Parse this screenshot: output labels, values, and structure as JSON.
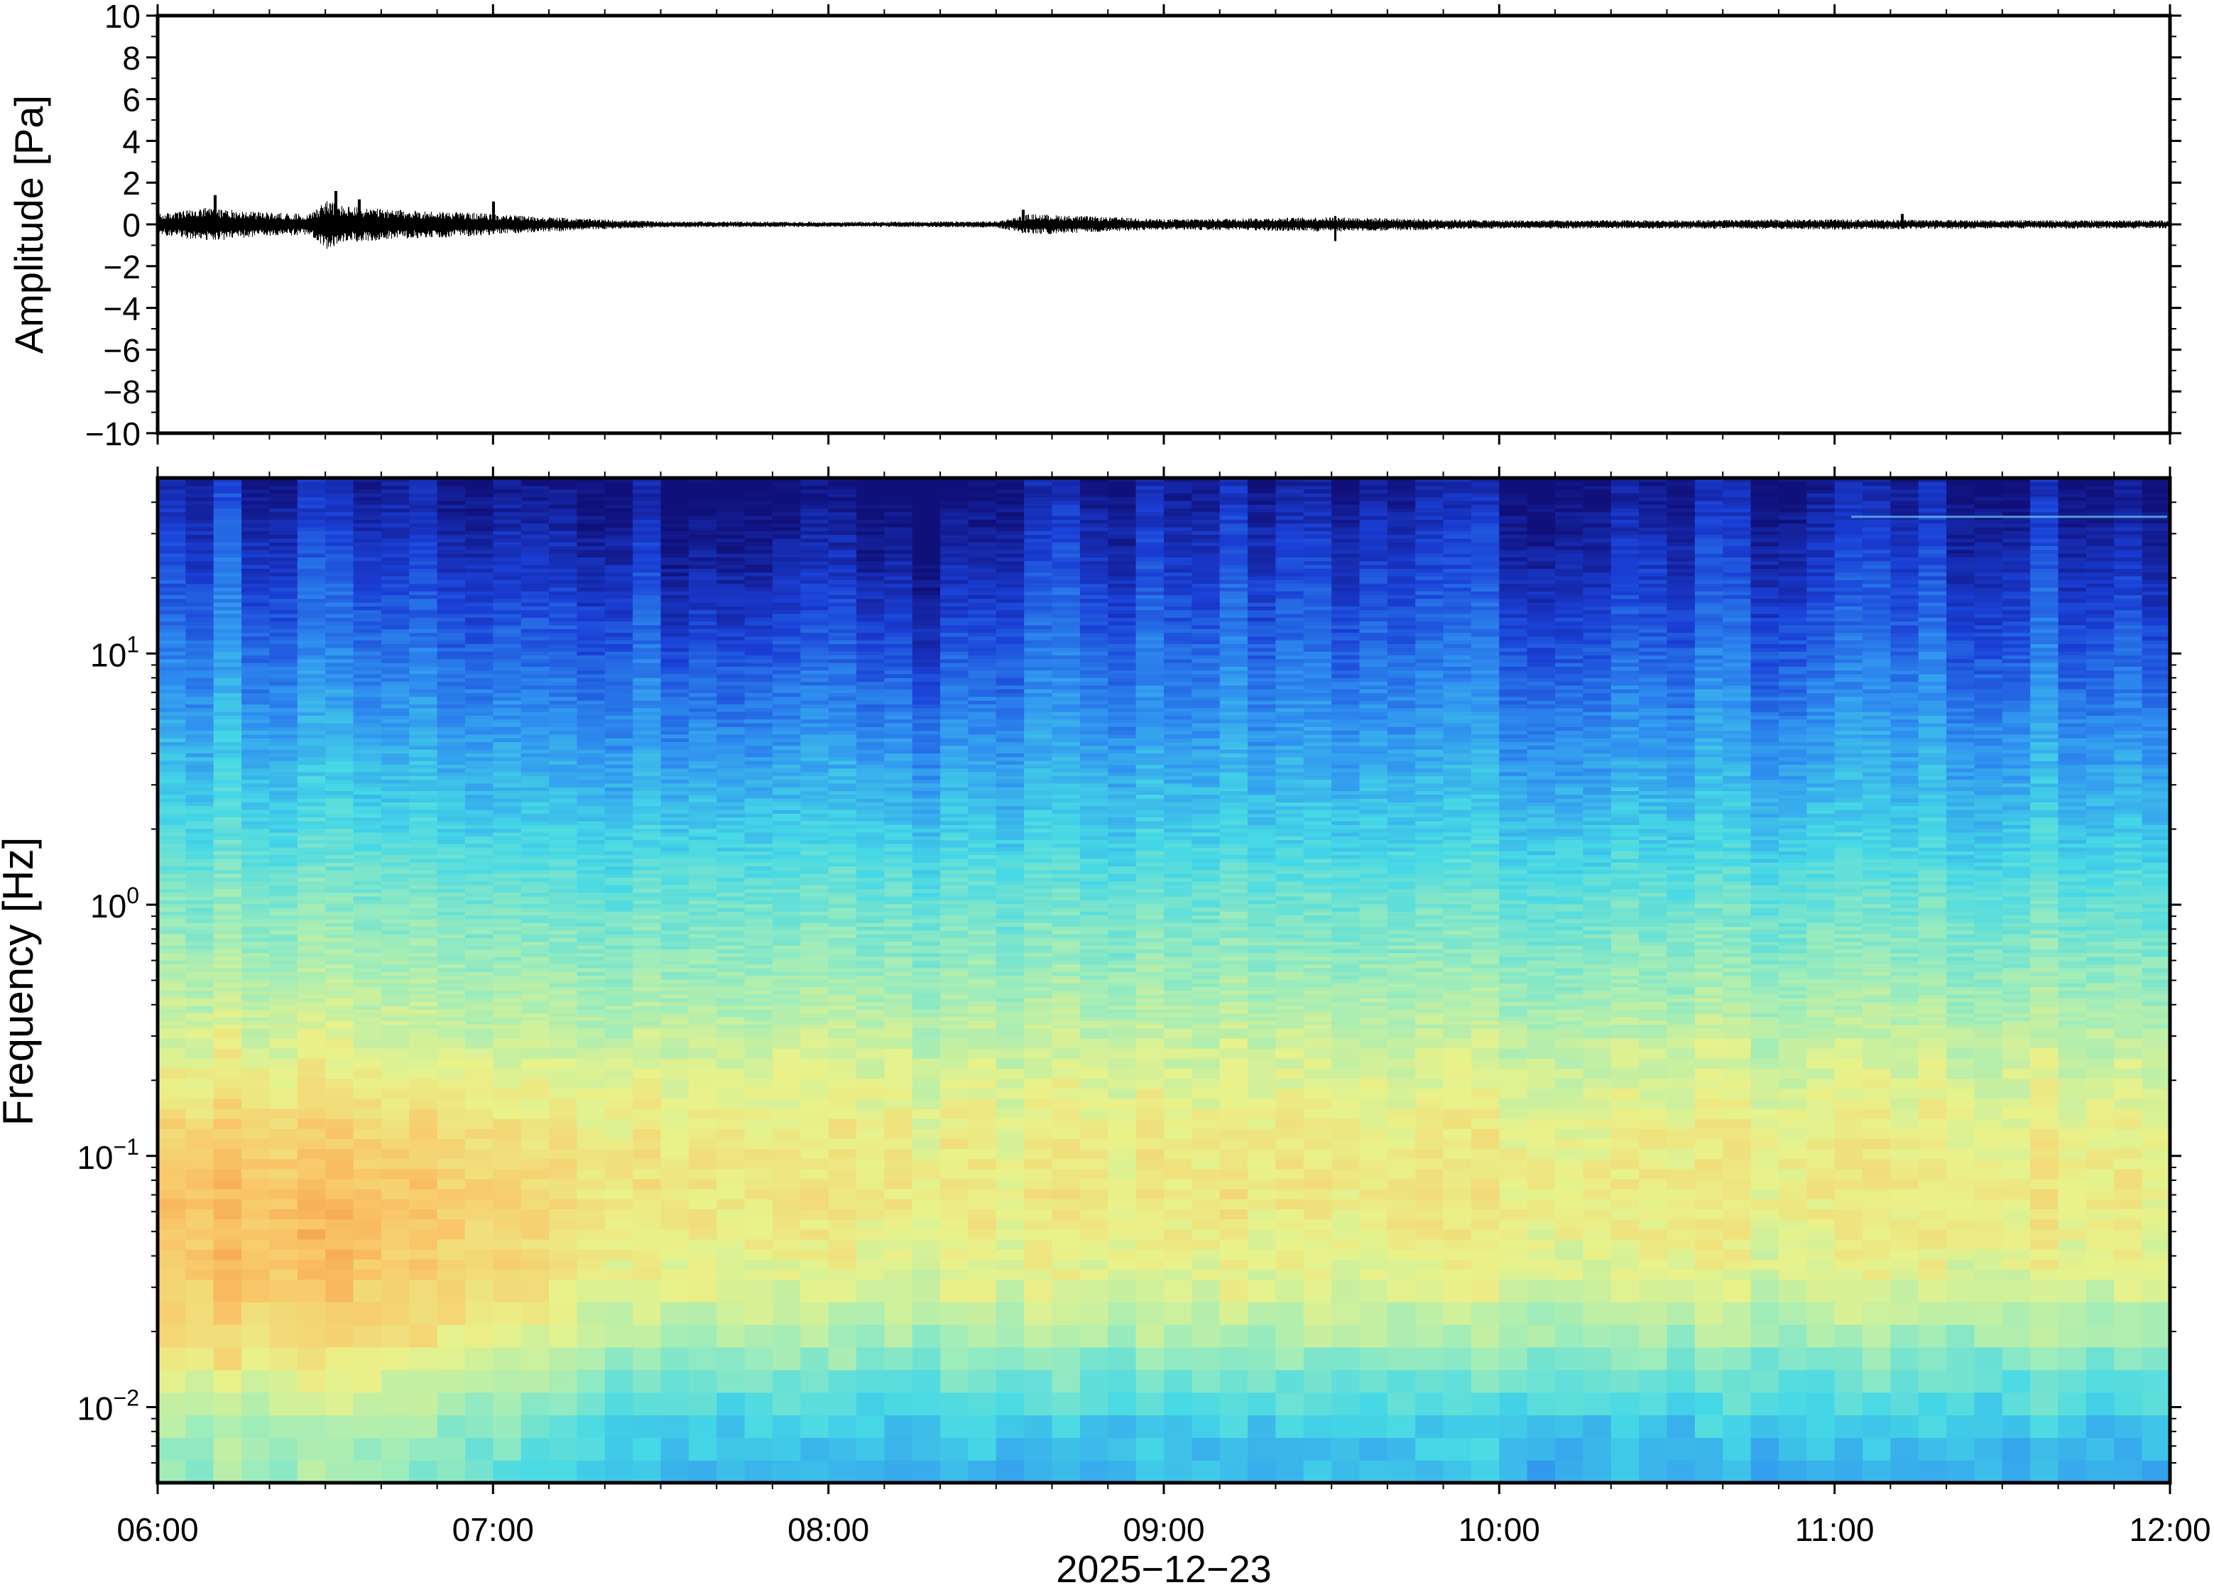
{
  "chart_data": [
    {
      "type": "line",
      "panel": "waveform",
      "ylabel": "Amplitude [Pa]",
      "ylim": [
        -10,
        10
      ],
      "yticks": [
        10,
        8,
        6,
        4,
        2,
        0,
        -2,
        -4,
        -6,
        -8,
        -10
      ],
      "ytick_labels": [
        "10",
        "8",
        "6",
        "4",
        "2",
        "0",
        "−2",
        "−4",
        "−6",
        "−8",
        "−10"
      ],
      "xlim": [
        "06:00",
        "12:00"
      ],
      "grid": false,
      "envelope": {
        "description_units": "hours after 06:00 vs peak amplitude in Pa",
        "t": [
          0,
          0.15,
          0.3,
          0.45,
          0.5,
          0.55,
          0.7,
          0.9,
          1.0,
          1.1,
          1.3,
          1.5,
          2.0,
          2.5,
          2.6,
          3.0,
          3.5,
          4.0,
          4.5,
          5.0,
          5.5,
          6.0
        ],
        "amp": [
          0.5,
          0.8,
          0.6,
          0.5,
          1.2,
          0.9,
          0.7,
          0.6,
          0.5,
          0.4,
          0.25,
          0.15,
          0.12,
          0.15,
          0.5,
          0.25,
          0.35,
          0.2,
          0.2,
          0.25,
          0.2,
          0.2
        ]
      },
      "spikes": [
        {
          "t": 0.17,
          "min": -0.4,
          "max": 1.4
        },
        {
          "t": 0.53,
          "min": -0.6,
          "max": 1.6
        },
        {
          "t": 0.6,
          "min": -0.5,
          "max": 1.2
        },
        {
          "t": 1.0,
          "min": -0.3,
          "max": 1.1
        },
        {
          "t": 2.58,
          "min": -0.2,
          "max": 0.7
        },
        {
          "t": 3.51,
          "min": -0.8,
          "max": 0.4
        },
        {
          "t": 5.2,
          "min": -0.2,
          "max": 0.5
        }
      ]
    },
    {
      "type": "heatmap",
      "panel": "spectrogram",
      "ylabel": "Frequency [Hz]",
      "yscale": "log",
      "ylim": [
        0.005,
        50
      ],
      "yticks": [
        0.01,
        0.1,
        1,
        10
      ],
      "ytick_labels": [
        {
          "base": "10",
          "exp": "−2"
        },
        {
          "base": "10",
          "exp": "−1"
        },
        {
          "base": "10",
          "exp": "0"
        },
        {
          "base": "10",
          "exp": "1"
        }
      ],
      "xlabel": "2025−12−23",
      "xticks": [
        "06:00",
        "07:00",
        "08:00",
        "09:00",
        "10:00",
        "11:00",
        "12:00"
      ],
      "colormap": "rainbow (blue = low power, red = high power)",
      "colormap_stops": [
        "#10107a",
        "#1a3fd6",
        "#2f8ff0",
        "#45d8e6",
        "#9cecbc",
        "#e9f28a",
        "#f9c86a",
        "#f48b3c",
        "#e8404a"
      ],
      "power_profile": {
        "description_units": "log10 frequency vs normalized power (0-1)",
        "logf": [
          -2.3,
          -2.1,
          -1.9,
          -1.7,
          -1.5,
          -1.3,
          -1.1,
          -0.9,
          -0.7,
          -0.5,
          -0.3,
          0,
          0.3,
          0.6,
          0.9,
          1.2,
          1.5,
          1.7
        ],
        "power": [
          0.34,
          0.37,
          0.46,
          0.56,
          0.63,
          0.66,
          0.67,
          0.65,
          0.61,
          0.56,
          0.51,
          0.44,
          0.36,
          0.29,
          0.22,
          0.15,
          0.08,
          0.03
        ]
      },
      "time_profile": {
        "description_units": "hours after 06:00 vs relative power boost",
        "t": [
          0,
          0.5,
          1.0,
          1.25,
          1.5,
          2.0,
          3.0,
          4.0,
          5.0,
          6.0
        ],
        "boost": [
          0.11,
          0.13,
          0.08,
          0.03,
          -0.01,
          -0.03,
          -0.02,
          -0.02,
          -0.03,
          -0.02
        ]
      },
      "hf_dip_hours": [
        1.5,
        2.5
      ],
      "line_feature_hz": 35
    }
  ]
}
